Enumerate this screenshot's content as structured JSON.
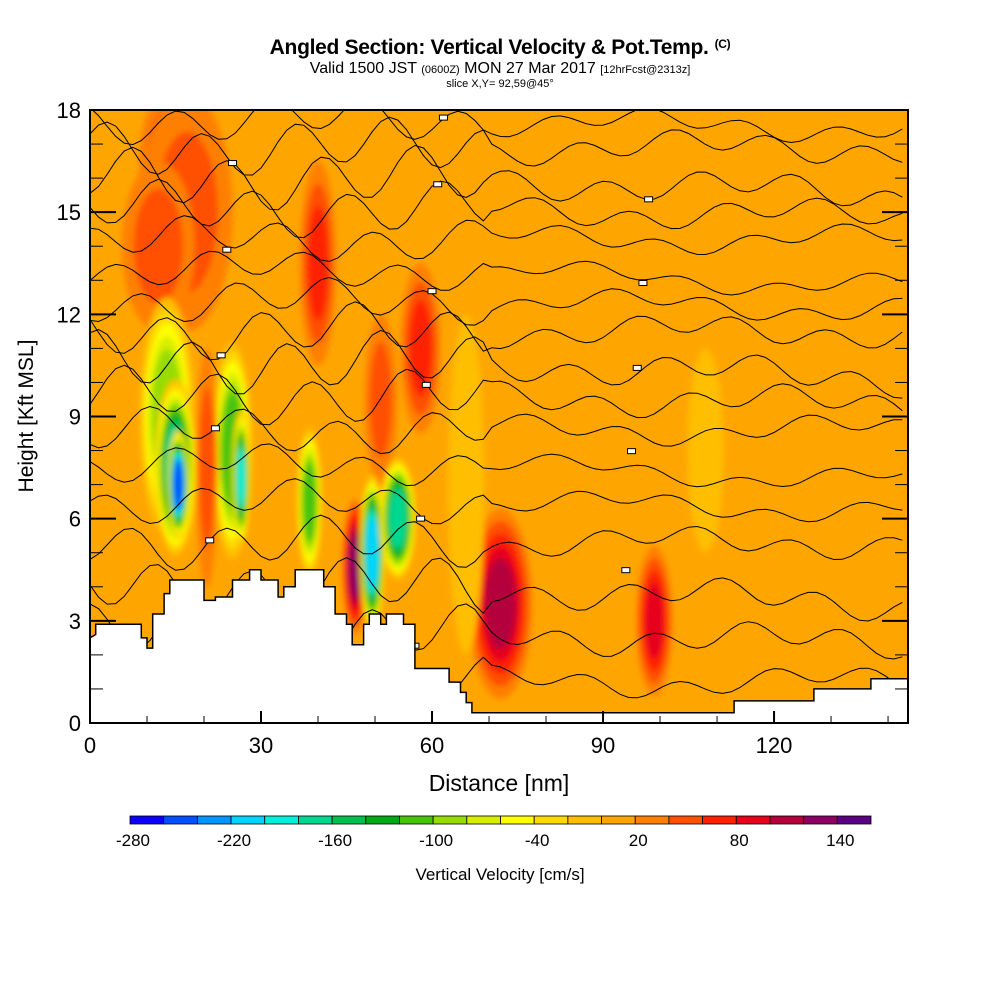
{
  "header": {
    "title": "Angled Section: Vertical Velocity & Pot.Temp.",
    "title_mark": "(C)",
    "valid_prefix": "Valid 1500 JST",
    "valid_utc": "(0600Z)",
    "valid_date": "MON 27 Mar 2017",
    "forecast": "[12hrFcst@2313z]",
    "slice": "slice X,Y= 92,59@45°"
  },
  "chart_data": {
    "type": "heatmap",
    "title": "Angled Section: Vertical Velocity & Pot.Temp.",
    "xlabel": "Distance [nm]",
    "ylabel": "Height [Kft MSL]",
    "xlim": [
      0,
      143.5
    ],
    "ylim": [
      0,
      18
    ],
    "x_ticks": [
      0,
      30,
      60,
      90,
      120
    ],
    "x_tick_labels": [
      "0",
      "30",
      "60",
      "90",
      "120"
    ],
    "x_minor_step": 10,
    "y_ticks": [
      0,
      3,
      6,
      9,
      12,
      15,
      18
    ],
    "y_tick_labels": [
      "0",
      "3",
      "6",
      "9",
      "12",
      "15",
      "18"
    ],
    "y_minor_step": 1,
    "background_value": 10,
    "features": [
      {
        "x": 15,
        "y": 16.5,
        "rx": 4,
        "ry": 2.2,
        "value": 70
      },
      {
        "x": 17,
        "y": 15,
        "rx": 5,
        "ry": 3.5,
        "value": 50
      },
      {
        "x": 12,
        "y": 14,
        "rx": 4,
        "ry": 2.5,
        "value": 50
      },
      {
        "x": 40,
        "y": 13.5,
        "rx": 2,
        "ry": 3,
        "value": 60
      },
      {
        "x": 58,
        "y": 11,
        "rx": 2.2,
        "ry": 2.5,
        "value": 60
      },
      {
        "x": 51,
        "y": 9.5,
        "rx": 1.8,
        "ry": 2.5,
        "value": 50
      },
      {
        "x": 13.5,
        "y": 9,
        "rx": 3,
        "ry": 3.5,
        "value": -100
      },
      {
        "x": 15,
        "y": 7.5,
        "rx": 2.3,
        "ry": 2.6,
        "value": -180
      },
      {
        "x": 15.5,
        "y": 7,
        "rx": 1.2,
        "ry": 1.6,
        "value": -260
      },
      {
        "x": 25,
        "y": 8,
        "rx": 2.2,
        "ry": 3.2,
        "value": -120
      },
      {
        "x": 26.5,
        "y": 7.2,
        "rx": 1,
        "ry": 2,
        "value": -190
      },
      {
        "x": 20.5,
        "y": 7.5,
        "rx": 1.2,
        "ry": 3.5,
        "value": 50
      },
      {
        "x": 38.5,
        "y": 6.5,
        "rx": 1.4,
        "ry": 2.2,
        "value": -120
      },
      {
        "x": 46.5,
        "y": 4.6,
        "rx": 1.4,
        "ry": 2,
        "value": 130
      },
      {
        "x": 49.5,
        "y": 5,
        "rx": 1.4,
        "ry": 2.3,
        "value": -220
      },
      {
        "x": 54,
        "y": 6,
        "rx": 2,
        "ry": 1.8,
        "value": -180
      },
      {
        "x": 72,
        "y": 3.5,
        "rx": 3.5,
        "ry": 2.8,
        "value": 100
      },
      {
        "x": 99,
        "y": 3,
        "rx": 2,
        "ry": 2.2,
        "value": 80
      },
      {
        "x": 66,
        "y": 7,
        "rx": 2,
        "ry": 5,
        "value": -20
      },
      {
        "x": 108,
        "y": 8,
        "rx": 2,
        "ry": 3,
        "value": -20
      }
    ],
    "terrain_profile_nm_kft": [
      [
        0,
        2.5
      ],
      [
        1,
        2.6
      ],
      [
        1,
        2.9
      ],
      [
        9,
        2.9
      ],
      [
        9,
        2.5
      ],
      [
        10,
        2.5
      ],
      [
        10,
        2.2
      ],
      [
        11,
        2.2
      ],
      [
        11,
        3.2
      ],
      [
        13,
        3.2
      ],
      [
        13,
        3.8
      ],
      [
        14,
        3.8
      ],
      [
        14,
        4.2
      ],
      [
        20,
        4.2
      ],
      [
        20,
        3.6
      ],
      [
        22,
        3.6
      ],
      [
        22,
        3.7
      ],
      [
        25,
        3.7
      ],
      [
        25,
        4.2
      ],
      [
        28,
        4.2
      ],
      [
        28,
        4.5
      ],
      [
        30,
        4.5
      ],
      [
        30,
        4.2
      ],
      [
        33,
        4.2
      ],
      [
        33,
        3.7
      ],
      [
        34,
        3.7
      ],
      [
        34,
        4.0
      ],
      [
        36,
        4.0
      ],
      [
        36,
        4.5
      ],
      [
        41,
        4.5
      ],
      [
        41,
        4.0
      ],
      [
        43,
        4.0
      ],
      [
        43,
        3.2
      ],
      [
        45,
        3.2
      ],
      [
        45,
        2.9
      ],
      [
        46,
        2.9
      ],
      [
        46,
        2.3
      ],
      [
        48,
        2.3
      ],
      [
        48,
        2.9
      ],
      [
        49,
        2.9
      ],
      [
        49,
        3.2
      ],
      [
        51,
        3.2
      ],
      [
        51,
        2.9
      ],
      [
        52,
        2.9
      ],
      [
        52,
        3.2
      ],
      [
        55,
        3.2
      ],
      [
        55,
        2.9
      ],
      [
        57,
        2.9
      ],
      [
        57,
        1.6
      ],
      [
        63,
        1.6
      ],
      [
        63,
        1.2
      ],
      [
        65,
        1.2
      ],
      [
        65,
        0.9
      ],
      [
        66,
        0.9
      ],
      [
        66,
        0.6
      ],
      [
        67,
        0.6
      ],
      [
        67,
        0.3
      ],
      [
        113,
        0.3
      ],
      [
        113,
        0.65
      ],
      [
        127,
        0.65
      ],
      [
        127,
        1.0
      ],
      [
        137,
        1.0
      ],
      [
        137,
        1.3
      ],
      [
        143.5,
        1.3
      ]
    ],
    "colorbar": {
      "label": "Vertical Velocity [cm/s]",
      "levels_min": -280,
      "level_step": 20,
      "tick_labels": [
        "-280",
        "-220",
        "-160",
        "-100",
        "-40",
        "20",
        "80",
        "140"
      ],
      "colors": [
        "#0a00ff",
        "#0050ff",
        "#0094ff",
        "#00d4ff",
        "#00f0dc",
        "#00d890",
        "#00c050",
        "#00aa14",
        "#46c40a",
        "#96dc00",
        "#d7ee00",
        "#ffff00",
        "#ffda00",
        "#ffbe00",
        "#ffa500",
        "#ff8000",
        "#ff5000",
        "#ff2000",
        "#e6001e",
        "#b4003c",
        "#8c0064",
        "#5a0082"
      ]
    },
    "contours": {
      "variable": "Pot.Temp.",
      "base_heights_kft": [
        1.2,
        2.6,
        4.0,
        5.3,
        6.5,
        7.6,
        8.6,
        9.6,
        10.6,
        11.5,
        12.4,
        13.3,
        14.2,
        15.1,
        16.0,
        16.9,
        17.7
      ]
    }
  }
}
